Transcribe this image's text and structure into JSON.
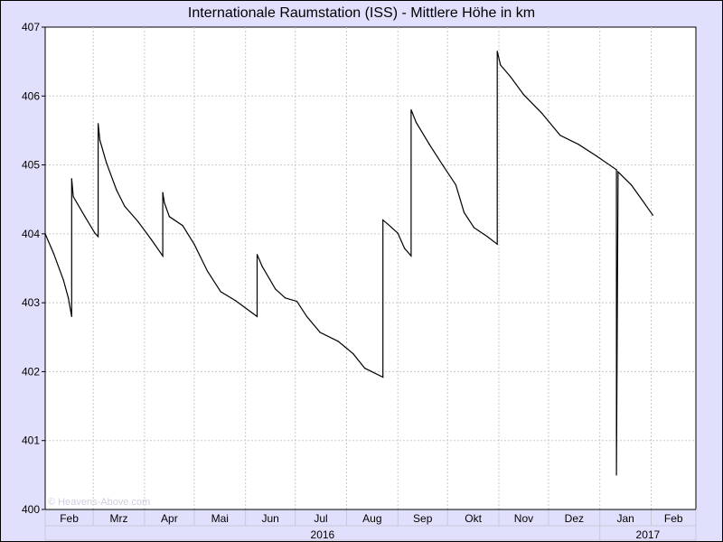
{
  "chart_data": {
    "type": "line",
    "title": "Internationale Raumstation (ISS) - Mittlere Höhe in km",
    "watermark": "© Heavens-Above.com",
    "xlim": [
      "2016-02-01",
      "2017-02-28"
    ],
    "ylim": [
      400,
      407
    ],
    "y_ticks": [
      "400",
      "401",
      "402",
      "403",
      "404",
      "405",
      "406",
      "407"
    ],
    "x_ticks": [
      {
        "label": "Feb",
        "start": "2016-02-01",
        "end": "2016-03-01"
      },
      {
        "label": "Mrz",
        "start": "2016-03-01",
        "end": "2016-04-01"
      },
      {
        "label": "Apr",
        "start": "2016-04-01",
        "end": "2016-05-01"
      },
      {
        "label": "Mai",
        "start": "2016-05-01",
        "end": "2016-06-01"
      },
      {
        "label": "Jun",
        "start": "2016-06-01",
        "end": "2016-07-01"
      },
      {
        "label": "Jul",
        "start": "2016-07-01",
        "end": "2016-08-01"
      },
      {
        "label": "Aug",
        "start": "2016-08-01",
        "end": "2016-09-01"
      },
      {
        "label": "Sep",
        "start": "2016-09-01",
        "end": "2016-10-01"
      },
      {
        "label": "Okt",
        "start": "2016-10-01",
        "end": "2016-11-01"
      },
      {
        "label": "Nov",
        "start": "2016-11-01",
        "end": "2016-12-01"
      },
      {
        "label": "Dez",
        "start": "2016-12-01",
        "end": "2017-01-01"
      },
      {
        "label": "Jan",
        "start": "2017-01-01",
        "end": "2017-02-01"
      },
      {
        "label": "Feb",
        "start": "2017-02-01",
        "end": "2017-02-28"
      }
    ],
    "years": [
      {
        "label": "2016",
        "start": "2016-02-01",
        "end": "2017-01-01"
      },
      {
        "label": "2017",
        "start": "2017-01-01",
        "end": "2017-02-28"
      }
    ],
    "grid": true,
    "line_color": "#000000",
    "background_color": "#e0e0fc",
    "series": [
      {
        "points": [
          [
            "2016-02-01",
            404.0
          ],
          [
            "2016-02-06",
            403.72
          ],
          [
            "2016-02-12",
            403.33
          ],
          [
            "2016-02-15",
            403.07
          ],
          [
            "2016-02-17",
            402.8
          ],
          [
            "2016-02-17",
            404.8
          ],
          [
            "2016-02-18",
            404.54
          ],
          [
            "2016-02-25",
            404.25
          ],
          [
            "2016-03-02",
            404.01
          ],
          [
            "2016-03-04",
            403.96
          ],
          [
            "2016-03-04",
            405.6
          ],
          [
            "2016-03-05",
            405.36
          ],
          [
            "2016-03-09",
            405.03
          ],
          [
            "2016-03-15",
            404.64
          ],
          [
            "2016-03-20",
            404.4
          ],
          [
            "2016-03-28",
            404.18
          ],
          [
            "2016-04-05",
            403.92
          ],
          [
            "2016-04-12",
            403.68
          ],
          [
            "2016-04-12",
            404.6
          ],
          [
            "2016-04-13",
            404.45
          ],
          [
            "2016-04-16",
            404.25
          ],
          [
            "2016-04-24",
            404.12
          ],
          [
            "2016-05-01",
            403.85
          ],
          [
            "2016-05-09",
            403.46
          ],
          [
            "2016-05-17",
            403.16
          ],
          [
            "2016-05-26",
            403.03
          ],
          [
            "2016-06-08",
            402.8
          ],
          [
            "2016-06-08",
            403.7
          ],
          [
            "2016-06-11",
            403.53
          ],
          [
            "2016-06-19",
            403.2
          ],
          [
            "2016-06-25",
            403.07
          ],
          [
            "2016-07-02",
            403.02
          ],
          [
            "2016-07-08",
            402.8
          ],
          [
            "2016-07-16",
            402.57
          ],
          [
            "2016-07-27",
            402.44
          ],
          [
            "2016-08-05",
            402.26
          ],
          [
            "2016-08-12",
            402.05
          ],
          [
            "2016-08-23",
            401.92
          ],
          [
            "2016-08-23",
            404.2
          ],
          [
            "2016-08-26",
            404.14
          ],
          [
            "2016-09-01",
            404.01
          ],
          [
            "2016-09-05",
            403.79
          ],
          [
            "2016-09-09",
            403.68
          ],
          [
            "2016-09-09",
            405.8
          ],
          [
            "2016-09-12",
            405.62
          ],
          [
            "2016-09-20",
            405.3
          ],
          [
            "2016-09-28",
            405.0
          ],
          [
            "2016-10-06",
            404.71
          ],
          [
            "2016-10-11",
            404.31
          ],
          [
            "2016-10-17",
            404.09
          ],
          [
            "2016-10-25",
            403.96
          ],
          [
            "2016-10-31",
            403.85
          ],
          [
            "2016-10-31",
            406.65
          ],
          [
            "2016-11-02",
            406.45
          ],
          [
            "2016-11-08",
            406.28
          ],
          [
            "2016-11-16",
            406.02
          ],
          [
            "2016-11-27",
            405.75
          ],
          [
            "2016-12-08",
            405.43
          ],
          [
            "2016-12-19",
            405.3
          ],
          [
            "2016-12-30",
            405.13
          ],
          [
            "2017-01-11",
            404.93
          ],
          [
            "2017-01-11",
            400.5
          ],
          [
            "2017-01-12",
            404.9
          ],
          [
            "2017-01-20",
            404.71
          ],
          [
            "2017-01-26",
            404.51
          ],
          [
            "2017-02-02",
            404.27
          ]
        ]
      }
    ]
  }
}
